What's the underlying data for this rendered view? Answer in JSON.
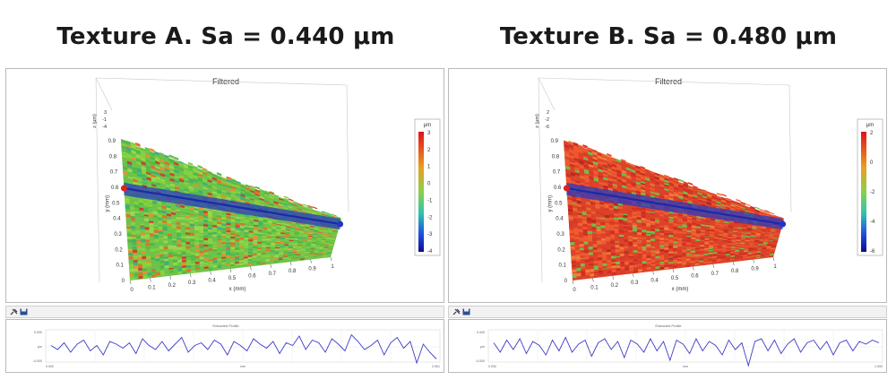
{
  "panels": [
    {
      "heading": "Texture A. Sa = 0.440 μm",
      "plot_title": "Filtered",
      "profile_title": "Extracted Profile",
      "colorbar": {
        "unit": "μm",
        "ticks": [
          "3",
          "2",
          "1",
          "0",
          "-1",
          "-2",
          "-3",
          "-4"
        ],
        "min": -4,
        "max": 3
      },
      "x_axis": {
        "label": "x (mm)",
        "ticks": [
          "0",
          "0.1",
          "0.2",
          "0.3",
          "0.4",
          "0.5",
          "0.6",
          "0.7",
          "0.8",
          "0.9",
          "1"
        ]
      },
      "y_axis": {
        "label": "y (mm)",
        "ticks": [
          "0",
          "0.1",
          "0.2",
          "0.3",
          "0.4",
          "0.5",
          "0.6",
          "0.7",
          "0.8",
          "0.9"
        ]
      },
      "z_axis": {
        "label": "z (μm)",
        "ticks": [
          "3",
          "-1",
          "-4"
        ]
      },
      "profile_axis": {
        "ymax": "0.000",
        "ymid": "μm",
        "ymin": "-0.000",
        "xmin": "0.000",
        "xmid": "mm",
        "xmax": "0.961"
      },
      "tone": "green"
    },
    {
      "heading": "Texture B. Sa = 0.480 μm",
      "plot_title": "Filtered",
      "profile_title": "Extracted Profile",
      "colorbar": {
        "unit": "μm",
        "ticks": [
          "2",
          "0",
          "-2",
          "-4",
          "-6"
        ],
        "min": -6,
        "max": 2
      },
      "x_axis": {
        "label": "x (mm)",
        "ticks": [
          "0",
          "0.1",
          "0.2",
          "0.3",
          "0.4",
          "0.5",
          "0.6",
          "0.7",
          "0.8",
          "0.9",
          "1"
        ]
      },
      "y_axis": {
        "label": "y (mm)",
        "ticks": [
          "0",
          "0.1",
          "0.2",
          "0.3",
          "0.4",
          "0.5",
          "0.6",
          "0.7",
          "0.8",
          "0.9"
        ]
      },
      "z_axis": {
        "label": "z (μm)",
        "ticks": [
          "2",
          "-2",
          "-6"
        ]
      },
      "profile_axis": {
        "ymax": "0.000",
        "ymid": "μm",
        "ymin": "-0.000",
        "xmin": "0.000",
        "xmid": "mm",
        "xmax": "1.000"
      },
      "tone": "red"
    }
  ],
  "chart_data": [
    {
      "type": "heatmap",
      "title": "Texture A. Sa = 0.440 μm",
      "subtitle": "Filtered",
      "xlabel": "x (mm)",
      "ylabel": "y (mm)",
      "zlabel": "z (μm)",
      "xlim": [
        0,
        1
      ],
      "ylim": [
        0,
        1
      ],
      "zlim": [
        -4,
        3
      ],
      "colorbar_unit": "μm",
      "legend": "right"
    },
    {
      "type": "heatmap",
      "title": "Texture B. Sa = 0.480 μm",
      "subtitle": "Filtered",
      "xlabel": "x (mm)",
      "ylabel": "y (mm)",
      "zlabel": "z (μm)",
      "xlim": [
        0,
        1
      ],
      "ylim": [
        0,
        1
      ],
      "zlim": [
        -6,
        2
      ],
      "colorbar_unit": "μm",
      "legend": "right"
    },
    {
      "type": "line",
      "title": "Extracted Profile",
      "xlabel": "mm",
      "ylabel": "μm",
      "xlim": [
        0,
        0.961
      ],
      "series": [
        {
          "values": [
            0.1,
            -0.2,
            0.3,
            -0.4,
            0.2,
            0.5,
            -0.3,
            0.1,
            -0.6,
            0.4,
            0.2,
            -0.1,
            0.3,
            -0.5,
            0.6,
            0.1,
            -0.2,
            0.4,
            -0.3,
            0.2,
            0.7,
            -0.4,
            0.1,
            0.3,
            -0.2,
            0.5,
            0.2,
            -0.6,
            0.4,
            0.1,
            -0.3,
            0.6,
            0.2,
            -0.1,
            0.4,
            -0.5,
            0.3,
            0.1,
            0.8,
            -0.2,
            0.5,
            0.3,
            -0.4,
            0.6,
            0.2,
            -0.3,
            0.9,
            0.4,
            -0.2,
            0.1,
            0.5,
            -0.6,
            0.3,
            0.7,
            -0.1,
            0.4,
            -1.2,
            0.2,
            -0.4,
            -0.9
          ]
        }
      ]
    },
    {
      "type": "line",
      "title": "Extracted Profile",
      "xlabel": "mm",
      "ylabel": "μm",
      "xlim": [
        0,
        1
      ],
      "series": [
        {
          "values": [
            0.3,
            -0.4,
            0.5,
            -0.2,
            0.6,
            -0.5,
            0.4,
            0.1,
            -0.6,
            0.5,
            -0.3,
            0.7,
            -0.4,
            0.2,
            0.5,
            -0.7,
            0.3,
            0.6,
            -0.2,
            0.4,
            -0.8,
            0.5,
            0.2,
            -0.4,
            0.6,
            -0.3,
            0.4,
            -1.0,
            0.5,
            0.2,
            -0.5,
            0.6,
            -0.3,
            0.4,
            0.1,
            -0.6,
            0.5,
            -0.2,
            0.3,
            -1.4,
            0.4,
            0.6,
            -0.3,
            0.5,
            -0.5,
            0.2,
            0.6,
            -0.4,
            0.3,
            0.5,
            -0.2,
            0.4,
            -0.6,
            0.3,
            0.5,
            -0.3,
            0.4,
            0.2,
            0.5,
            0.3
          ]
        }
      ]
    }
  ]
}
